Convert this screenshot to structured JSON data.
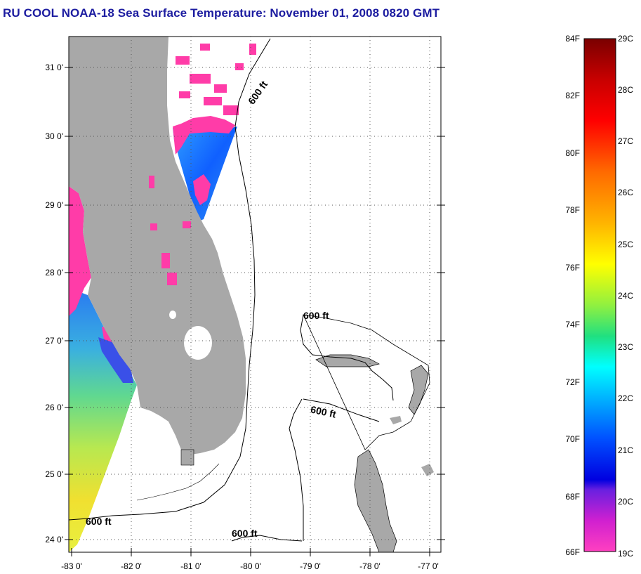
{
  "title": "RU COOL  NOAA-18  Sea Surface Temperature:  November 01, 2008 0820 GMT",
  "map": {
    "lat_labels": [
      "31 0'",
      "30 0'",
      "29 0'",
      "28 0'",
      "27 0'",
      "26 0'",
      "25 0'",
      "24 0'"
    ],
    "lon_labels": [
      "-83 0'",
      "-82 0'",
      "-81 0'",
      "-80 0'",
      "-79 0'",
      "-78 0'",
      "-77 0'"
    ],
    "contour_labels": [
      "600 ft",
      "600 ft",
      "600 ft",
      "600 ft",
      "600 ft"
    ],
    "colors": {
      "land": "#a8a8a8",
      "ocean": "#ffffff",
      "cloud_mask": "#ff3ca8"
    }
  },
  "colorbar": {
    "f_labels": [
      "84F",
      "82F",
      "80F",
      "78F",
      "76F",
      "74F",
      "72F",
      "70F",
      "68F",
      "66F"
    ],
    "c_labels": [
      "29C",
      "28C",
      "27C",
      "26C",
      "25C",
      "24C",
      "23C",
      "22C",
      "21C",
      "20C",
      "19C"
    ]
  }
}
